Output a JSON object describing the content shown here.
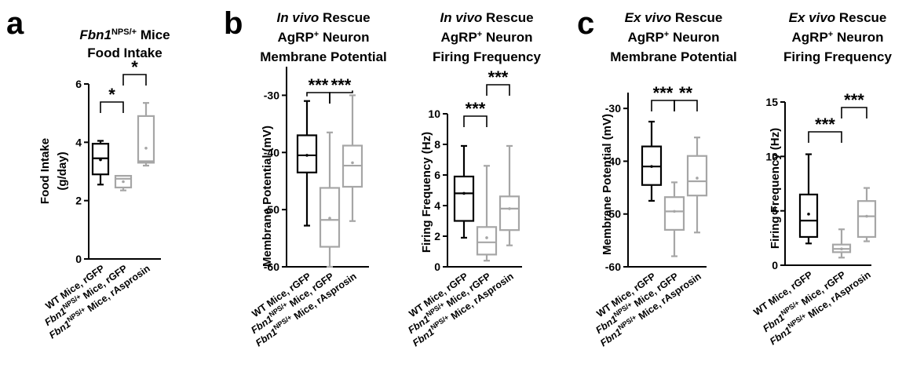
{
  "panels": [
    {
      "letter": "a"
    },
    {
      "letter": "b"
    },
    {
      "letter": "c"
    }
  ],
  "categories": [
    {
      "prefix": "WT Mice, rGFP"
    },
    {
      "gene": "Fbn1",
      "sup": "NPS/+",
      "rest": " Mice, rGFP"
    },
    {
      "gene": "Fbn1",
      "sup": "NPS/+",
      "rest": " Mice, rAsprosin"
    }
  ],
  "colors": {
    "wt": "#000000",
    "ko": "#a6a6a6"
  },
  "chart_data": [
    {
      "type": "box",
      "title_lines": [
        [
          {
            "t": "Fbn1",
            "i": true
          },
          {
            "t": "NPS/+",
            "sup": true
          },
          {
            "t": " Mice"
          }
        ],
        [
          {
            "t": "Food Intake"
          }
        ]
      ],
      "ylabel_lines": [
        "Food Intake",
        "(g/day)"
      ],
      "ylim": [
        0,
        6
      ],
      "yticks": [
        0,
        2,
        4,
        6
      ],
      "boxes": [
        {
          "min": 2.55,
          "q1": 2.9,
          "median": 3.45,
          "q3": 3.95,
          "max": 4.05,
          "mean": 3.4
        },
        {
          "min": 2.35,
          "q1": 2.45,
          "median": 2.75,
          "q3": 2.85,
          "max": 2.85,
          "mean": 2.65
        },
        {
          "min": 3.2,
          "q1": 3.3,
          "median": 3.35,
          "q3": 4.9,
          "max": 5.35,
          "mean": 3.8
        }
      ],
      "significance": [
        {
          "from": 0,
          "to": 1,
          "label": "*"
        },
        {
          "from": 1,
          "to": 2,
          "label": "*"
        }
      ]
    },
    {
      "type": "box",
      "title_lines": [
        [
          {
            "t": "In vivo",
            "i": true
          },
          {
            "t": " Rescue"
          }
        ],
        [
          {
            "t": "AgRP"
          },
          {
            "t": "+",
            "sup": true
          },
          {
            "t": " Neuron"
          }
        ],
        [
          {
            "t": "Membrane Potential"
          }
        ]
      ],
      "ylabel_lines": [
        "Membrane Potential (mV)"
      ],
      "ylim": [
        -60,
        -25
      ],
      "yticks": [
        -60,
        -50,
        -40,
        -30
      ],
      "boxes": [
        {
          "min": -52.8,
          "q1": -43.5,
          "median": -40.5,
          "q3": -37.0,
          "max": -31.0,
          "mean": -40.5
        },
        {
          "min": -60.0,
          "q1": -56.5,
          "median": -51.8,
          "q3": -46.2,
          "max": -36.5,
          "mean": -51.5
        },
        {
          "min": -52.0,
          "q1": -46.0,
          "median": -42.3,
          "q3": -38.8,
          "max": -30.0,
          "mean": -41.8
        }
      ],
      "significance": [
        {
          "from": 0,
          "to": 1,
          "label": "***"
        },
        {
          "from": 1,
          "to": 2,
          "label": "***"
        }
      ]
    },
    {
      "type": "box",
      "title_lines": [
        [
          {
            "t": "In vivo",
            "i": true
          },
          {
            "t": " Rescue"
          }
        ],
        [
          {
            "t": "AgRP"
          },
          {
            "t": "+",
            "sup": true
          },
          {
            "t": " Neuron"
          }
        ],
        [
          {
            "t": "Firing Frequency"
          }
        ]
      ],
      "ylabel_lines": [
        "Firing Frequency (Hz)"
      ],
      "ylim": [
        0,
        10
      ],
      "yticks": [
        0,
        2,
        4,
        6,
        8,
        10
      ],
      "boxes": [
        {
          "min": 1.9,
          "q1": 3.0,
          "median": 4.8,
          "q3": 5.9,
          "max": 7.9,
          "mean": 4.8
        },
        {
          "min": 0.4,
          "q1": 0.8,
          "median": 1.6,
          "q3": 2.6,
          "max": 6.6,
          "mean": 1.9
        },
        {
          "min": 1.4,
          "q1": 2.4,
          "median": 3.8,
          "q3": 4.6,
          "max": 7.9,
          "mean": 3.8
        }
      ],
      "significance": [
        {
          "from": 0,
          "to": 1,
          "label": "***"
        },
        {
          "from": 1,
          "to": 2,
          "label": "***"
        }
      ]
    },
    {
      "type": "box",
      "title_lines": [
        [
          {
            "t": "Ex vivo",
            "i": true
          },
          {
            "t": " Rescue"
          }
        ],
        [
          {
            "t": "AgRP"
          },
          {
            "t": "+",
            "sup": true
          },
          {
            "t": " Neuron"
          }
        ],
        [
          {
            "t": "Membrane Potential"
          }
        ]
      ],
      "ylabel_lines": [
        "Membrane Potential (mV)"
      ],
      "ylim": [
        -60,
        -27
      ],
      "yticks": [
        -60,
        -50,
        -40,
        -30
      ],
      "boxes": [
        {
          "min": -47.5,
          "q1": -44.5,
          "median": -41.0,
          "q3": -37.2,
          "max": -32.5,
          "mean": -41.0
        },
        {
          "min": -58.0,
          "q1": -53.0,
          "median": -49.5,
          "q3": -46.8,
          "max": -44.0,
          "mean": -49.5
        },
        {
          "min": -53.5,
          "q1": -46.5,
          "median": -43.8,
          "q3": -39.0,
          "max": -35.5,
          "mean": -43.2
        }
      ],
      "significance": [
        {
          "from": 0,
          "to": 1,
          "label": "***"
        },
        {
          "from": 1,
          "to": 2,
          "label": "**"
        }
      ]
    },
    {
      "type": "box",
      "title_lines": [
        [
          {
            "t": "Ex vivo",
            "i": true
          },
          {
            "t": " Rescue"
          }
        ],
        [
          {
            "t": "AgRP"
          },
          {
            "t": "+",
            "sup": true
          },
          {
            "t": " Neuron"
          }
        ],
        [
          {
            "t": "Firing Frequency"
          }
        ]
      ],
      "ylabel_lines": [
        "Firing Frequency (Hz)"
      ],
      "ylim": [
        0,
        15
      ],
      "yticks": [
        0,
        5,
        10,
        15
      ],
      "boxes": [
        {
          "min": 2.0,
          "q1": 2.6,
          "median": 4.1,
          "q3": 6.5,
          "max": 10.2,
          "mean": 4.7
        },
        {
          "min": 0.7,
          "q1": 1.2,
          "median": 1.5,
          "q3": 1.9,
          "max": 3.3,
          "mean": 1.5
        },
        {
          "min": 2.2,
          "q1": 2.6,
          "median": 4.5,
          "q3": 5.9,
          "max": 7.1,
          "mean": 4.5
        }
      ],
      "significance": [
        {
          "from": 0,
          "to": 1,
          "label": "***"
        },
        {
          "from": 1,
          "to": 2,
          "label": "***"
        }
      ]
    }
  ]
}
